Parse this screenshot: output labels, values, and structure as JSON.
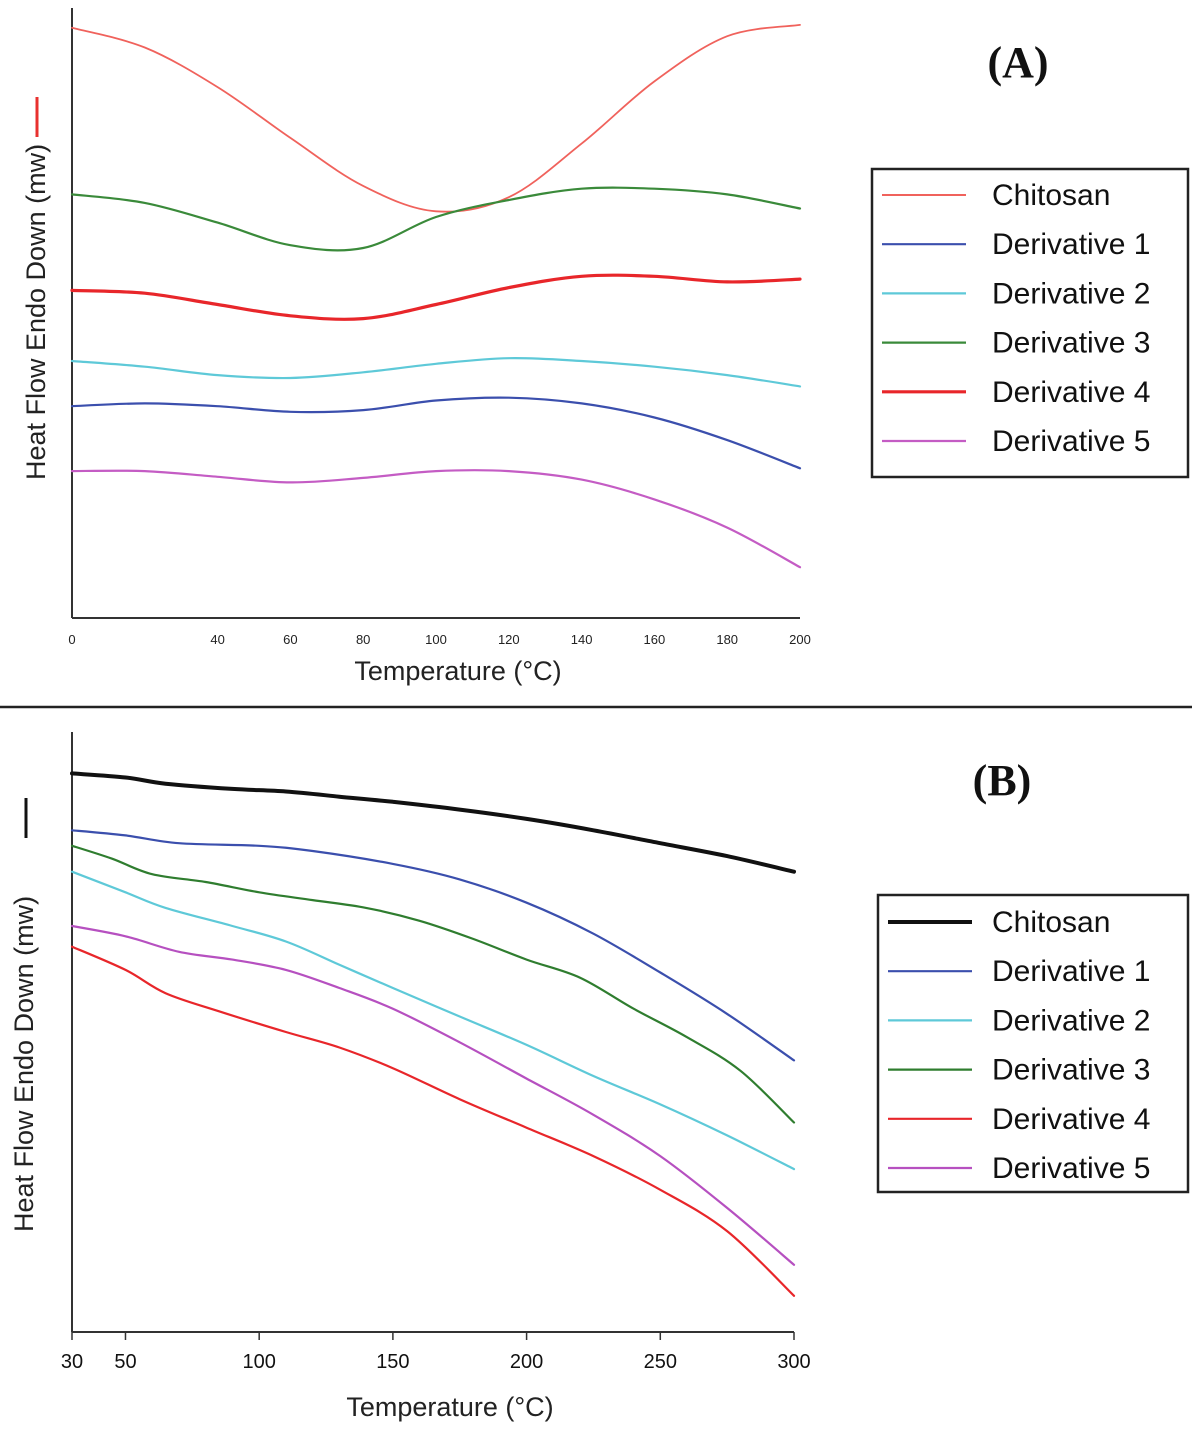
{
  "separator": true,
  "chart_data": [
    {
      "type": "line",
      "panel_label": "(A)",
      "xlabel": "Temperature (°C)",
      "ylabel": "Heat Flow Endo Down (mw)",
      "ylabel_marker_color": "#e8312f",
      "xlim": [
        0,
        200
      ],
      "xticks": [
        0,
        40,
        60,
        80,
        100,
        120,
        140,
        160,
        180,
        200
      ],
      "y_ticks_shown": false,
      "legend_position": "right",
      "series": [
        {
          "name": "Chitosan",
          "color": "#f0625c",
          "width": 1.8,
          "x": [
            0,
            20,
            40,
            60,
            80,
            100,
            120,
            140,
            160,
            180,
            200
          ],
          "y": [
            9.95,
            9.6,
            8.9,
            8.0,
            7.15,
            6.7,
            6.95,
            7.9,
            9.0,
            9.8,
            10.0
          ]
        },
        {
          "name": "Derivative 1",
          "color": "#3b4fad",
          "width": 2.2,
          "x": [
            0,
            20,
            40,
            60,
            80,
            100,
            120,
            140,
            160,
            180,
            200
          ],
          "y": [
            3.25,
            3.3,
            3.25,
            3.15,
            3.18,
            3.35,
            3.4,
            3.3,
            3.05,
            2.65,
            2.15
          ]
        },
        {
          "name": "Derivative 2",
          "color": "#5ec9d8",
          "width": 2.2,
          "x": [
            0,
            20,
            40,
            60,
            80,
            100,
            120,
            140,
            160,
            180,
            200
          ],
          "y": [
            4.05,
            3.95,
            3.8,
            3.75,
            3.85,
            4.0,
            4.1,
            4.05,
            3.95,
            3.8,
            3.6
          ]
        },
        {
          "name": "Derivative 3",
          "color": "#3a8a3a",
          "width": 2.2,
          "x": [
            0,
            20,
            40,
            60,
            80,
            100,
            120,
            140,
            160,
            180,
            200
          ],
          "y": [
            7.0,
            6.85,
            6.5,
            6.1,
            6.05,
            6.6,
            6.9,
            7.1,
            7.1,
            7.0,
            6.75
          ]
        },
        {
          "name": "Derivative 4",
          "color": "#e8262a",
          "width": 3.2,
          "x": [
            0,
            20,
            40,
            60,
            80,
            100,
            120,
            140,
            160,
            180,
            200
          ],
          "y": [
            5.3,
            5.25,
            5.05,
            4.85,
            4.8,
            5.05,
            5.35,
            5.55,
            5.55,
            5.45,
            5.5
          ]
        },
        {
          "name": "Derivative 5",
          "color": "#c45cc4",
          "width": 2.2,
          "x": [
            0,
            20,
            40,
            60,
            80,
            100,
            120,
            140,
            160,
            180,
            200
          ],
          "y": [
            2.1,
            2.1,
            2.0,
            1.9,
            1.98,
            2.1,
            2.1,
            1.95,
            1.6,
            1.1,
            0.4
          ]
        }
      ]
    },
    {
      "type": "line",
      "panel_label": "(B)",
      "xlabel": "Temperature (°C)",
      "ylabel": "Heat Flow Endo Down (mw)",
      "ylabel_marker_color": "#111111",
      "xlim": [
        30,
        300
      ],
      "xticks": [
        30,
        50,
        100,
        150,
        200,
        250,
        300
      ],
      "y_ticks_shown": false,
      "legend_position": "right",
      "series": [
        {
          "name": "Chitosan",
          "color": "#111111",
          "width": 4.0,
          "x": [
            30,
            50,
            65,
            90,
            110,
            130,
            150,
            175,
            200,
            225,
            250,
            275,
            300
          ],
          "y": [
            9.8,
            9.72,
            9.6,
            9.5,
            9.45,
            9.35,
            9.25,
            9.1,
            8.92,
            8.7,
            8.45,
            8.2,
            7.9
          ]
        },
        {
          "name": "Derivative 1",
          "color": "#3b4fad",
          "width": 2.2,
          "x": [
            30,
            50,
            70,
            100,
            120,
            150,
            175,
            200,
            225,
            250,
            275,
            300
          ],
          "y": [
            8.7,
            8.6,
            8.45,
            8.4,
            8.3,
            8.05,
            7.75,
            7.3,
            6.7,
            5.95,
            5.15,
            4.25
          ]
        },
        {
          "name": "Derivative 2",
          "color": "#5ec9d8",
          "width": 2.2,
          "x": [
            30,
            50,
            65,
            90,
            110,
            130,
            150,
            175,
            200,
            225,
            250,
            275,
            300
          ],
          "y": [
            7.9,
            7.5,
            7.2,
            6.85,
            6.55,
            6.1,
            5.65,
            5.1,
            4.55,
            3.95,
            3.4,
            2.8,
            2.15
          ]
        },
        {
          "name": "Derivative 3",
          "color": "#2f7d2f",
          "width": 2.2,
          "x": [
            30,
            45,
            60,
            80,
            100,
            120,
            140,
            160,
            180,
            200,
            220,
            240,
            260,
            280,
            300
          ],
          "y": [
            8.4,
            8.15,
            7.85,
            7.7,
            7.5,
            7.35,
            7.2,
            6.95,
            6.6,
            6.2,
            5.85,
            5.25,
            4.7,
            4.05,
            3.05
          ]
        },
        {
          "name": "Derivative 4",
          "color": "#e8262a",
          "width": 2.2,
          "x": [
            30,
            50,
            65,
            85,
            110,
            130,
            150,
            175,
            200,
            225,
            250,
            275,
            300
          ],
          "y": [
            6.45,
            6.0,
            5.55,
            5.2,
            4.8,
            4.5,
            4.1,
            3.5,
            2.95,
            2.4,
            1.75,
            0.95,
            -0.3
          ]
        },
        {
          "name": "Derivative 5",
          "color": "#b650c0",
          "width": 2.2,
          "x": [
            30,
            50,
            70,
            90,
            110,
            130,
            150,
            175,
            200,
            225,
            250,
            275,
            300
          ],
          "y": [
            6.85,
            6.65,
            6.35,
            6.2,
            6.0,
            5.65,
            5.25,
            4.6,
            3.9,
            3.2,
            2.4,
            1.4,
            0.3
          ]
        }
      ]
    }
  ]
}
